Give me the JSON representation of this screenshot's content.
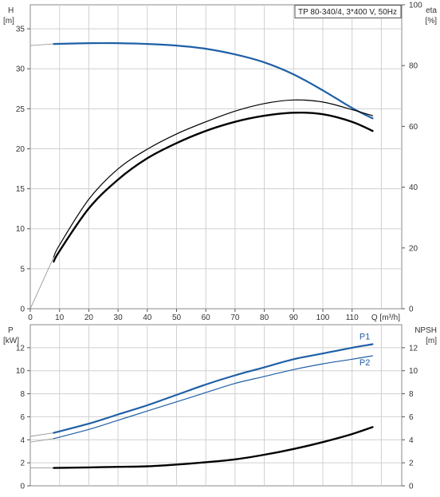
{
  "chart_data": [
    {
      "type": "line",
      "title": "TP 80-340/4, 3*400 V, 50Hz",
      "xlabel": "Q [m³/h]",
      "xlim": [
        0,
        120
      ],
      "x_ticks": [
        "0",
        "10",
        "20",
        "30",
        "40",
        "50",
        "60",
        "70",
        "80",
        "90",
        "100",
        "110"
      ],
      "left_axis": {
        "label_line1": "H",
        "label_line2": "[m]",
        "lim": [
          0,
          38
        ],
        "ticks": [
          "0",
          "5",
          "10",
          "15",
          "20",
          "25",
          "30",
          "35"
        ]
      },
      "right_axis": {
        "label_line1": "eta",
        "label_line2": "[%]",
        "lim": [
          0,
          100
        ],
        "ticks": [
          "0",
          "20",
          "40",
          "60",
          "80",
          "100"
        ]
      },
      "grid": true,
      "series": [
        {
          "key": "H",
          "axis": "left",
          "color": "#1f5fa6",
          "width": 2.2,
          "x": [
            0,
            8,
            20,
            30,
            40,
            50,
            60,
            70,
            80,
            90,
            100,
            110,
            117
          ],
          "y": [
            32.9,
            33.1,
            33.2,
            33.2,
            33.1,
            32.9,
            32.5,
            31.8,
            30.8,
            29.3,
            27.3,
            25.1,
            23.8
          ],
          "lead_in_to": 8
        },
        {
          "key": "eta_thin",
          "axis": "right",
          "color": "#000000",
          "width": 1.2,
          "x": [
            0,
            8,
            10,
            20,
            30,
            40,
            50,
            60,
            70,
            80,
            90,
            100,
            110,
            117
          ],
          "y": [
            0,
            17,
            21,
            36,
            46,
            52.5,
            57.5,
            61.5,
            65,
            67.5,
            68.7,
            68,
            65.5,
            63.5
          ],
          "lead_in_to": 8
        },
        {
          "key": "eta_thick",
          "axis": "right",
          "color": "#000000",
          "width": 2.4,
          "x": [
            8,
            10,
            20,
            30,
            40,
            50,
            60,
            70,
            80,
            90,
            100,
            110,
            117
          ],
          "y": [
            15.5,
            19,
            33,
            42.5,
            49.5,
            54.5,
            58.5,
            61.5,
            63.5,
            64.5,
            64,
            61.5,
            58.5
          ]
        }
      ]
    },
    {
      "type": "line",
      "xlim": [
        0,
        120
      ],
      "left_axis": {
        "label_line1": "P",
        "label_line2": "[kW]",
        "lim": [
          0,
          14
        ],
        "ticks": [
          "0",
          "2",
          "4",
          "6",
          "8",
          "10",
          "12"
        ]
      },
      "right_axis": {
        "label_line1": "NPSH",
        "label_line2": "[m]",
        "lim": [
          0,
          14
        ],
        "ticks": [
          "0",
          "2",
          "4",
          "6",
          "8",
          "10",
          "12"
        ]
      },
      "grid": true,
      "series": [
        {
          "key": "P1",
          "name": "P1",
          "axis": "left",
          "color": "#1f5fa6",
          "width": 2.2,
          "x": [
            0,
            8,
            20,
            30,
            40,
            50,
            60,
            70,
            80,
            90,
            100,
            110,
            117
          ],
          "y": [
            4.3,
            4.6,
            5.4,
            6.2,
            7.0,
            7.9,
            8.8,
            9.6,
            10.3,
            11.0,
            11.5,
            12.0,
            12.3
          ],
          "lead_in_to": 8
        },
        {
          "key": "P2",
          "name": "P2",
          "axis": "left",
          "color": "#1f5fa6",
          "width": 1.2,
          "x": [
            0,
            8,
            20,
            30,
            40,
            50,
            60,
            70,
            80,
            90,
            100,
            110,
            117
          ],
          "y": [
            3.8,
            4.1,
            4.9,
            5.7,
            6.5,
            7.3,
            8.1,
            8.9,
            9.5,
            10.1,
            10.6,
            11.0,
            11.3
          ],
          "lead_in_to": 8
        },
        {
          "key": "NPSH",
          "axis": "right",
          "color": "#000000",
          "width": 2.4,
          "x": [
            0,
            8,
            20,
            30,
            40,
            50,
            60,
            70,
            80,
            90,
            100,
            110,
            117
          ],
          "y": [
            1.55,
            1.55,
            1.6,
            1.65,
            1.7,
            1.85,
            2.05,
            2.3,
            2.7,
            3.2,
            3.8,
            4.5,
            5.1
          ],
          "lead_in_to": 8
        }
      ],
      "series_labels": [
        {
          "key": "P1",
          "text": "P1"
        },
        {
          "key": "P2",
          "text": "P2"
        }
      ]
    }
  ]
}
